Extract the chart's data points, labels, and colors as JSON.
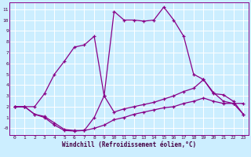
{
  "xlabel": "Windchill (Refroidissement éolien,°C)",
  "background_color": "#cceeff",
  "grid_color": "#ffffff",
  "line_color": "#880088",
  "x_ticks": [
    0,
    1,
    2,
    3,
    4,
    5,
    6,
    7,
    8,
    9,
    10,
    11,
    12,
    13,
    14,
    15,
    16,
    17,
    18,
    19,
    20,
    21,
    22,
    23
  ],
  "y_ticks": [
    0,
    1,
    2,
    3,
    4,
    5,
    6,
    7,
    8,
    9,
    10,
    11
  ],
  "ylim": [
    -0.6,
    11.6
  ],
  "xlim": [
    -0.5,
    23.5
  ],
  "line1_x": [
    0,
    1,
    2,
    3,
    4,
    5,
    6,
    7,
    8,
    9,
    10,
    11,
    12,
    13,
    14,
    15,
    16,
    17,
    18,
    19,
    20,
    21,
    22,
    23
  ],
  "line1_y": [
    2.0,
    2.0,
    2.0,
    3.2,
    5.0,
    6.2,
    7.5,
    7.7,
    8.5,
    3.0,
    10.8,
    10.0,
    10.0,
    9.9,
    10.0,
    11.2,
    10.0,
    8.5,
    5.0,
    4.5,
    3.3,
    2.5,
    2.3,
    2.3
  ],
  "line2_x": [
    0,
    1,
    2,
    3,
    4,
    5,
    6,
    7,
    8,
    9,
    10,
    11,
    12,
    13,
    14,
    15,
    16,
    17,
    18,
    19,
    20,
    21,
    22,
    23
  ],
  "line2_y": [
    2.0,
    2.0,
    1.3,
    1.1,
    0.5,
    -0.1,
    -0.2,
    -0.2,
    1.0,
    3.0,
    1.5,
    1.8,
    2.0,
    2.2,
    2.4,
    2.7,
    3.0,
    3.4,
    3.7,
    4.5,
    3.2,
    3.1,
    2.5,
    1.3
  ],
  "line3_x": [
    0,
    1,
    2,
    3,
    4,
    5,
    6,
    7,
    8,
    9,
    10,
    11,
    12,
    13,
    14,
    15,
    16,
    17,
    18,
    19,
    20,
    21,
    22,
    23
  ],
  "line3_y": [
    2.0,
    2.0,
    1.3,
    1.0,
    0.3,
    -0.2,
    -0.25,
    -0.2,
    0.0,
    0.3,
    0.8,
    1.0,
    1.3,
    1.5,
    1.7,
    1.9,
    2.0,
    2.3,
    2.5,
    2.8,
    2.5,
    2.3,
    2.3,
    1.3
  ],
  "bottom_bar_color": "#880088",
  "spine_color": "#880088"
}
